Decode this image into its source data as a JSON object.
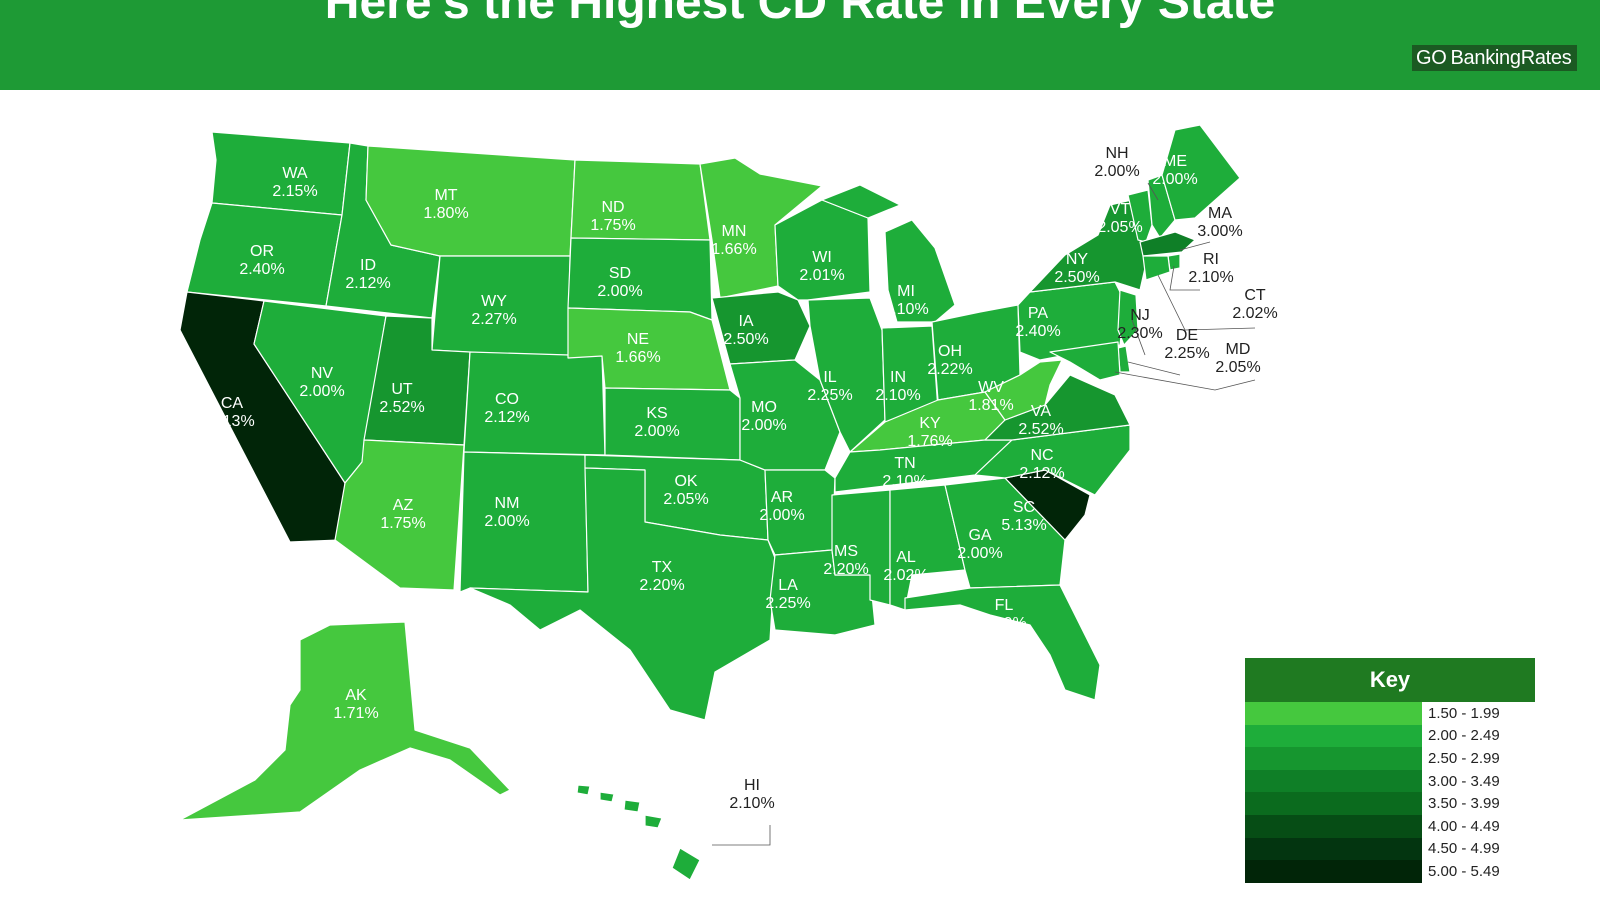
{
  "header": {
    "title": "Here's the Highest CD Rate in Every State",
    "brand_go": "GO",
    "brand_name": "BankingRates"
  },
  "legend": {
    "title": "Key",
    "items": [
      {
        "range": "1.50 - 1.99",
        "color": "#45c83e"
      },
      {
        "range": "2.00 - 2.49",
        "color": "#1ead3a"
      },
      {
        "range": "2.50 - 2.99",
        "color": "#16962f"
      },
      {
        "range": "3.00 - 3.49",
        "color": "#0f7f27"
      },
      {
        "range": "3.50 - 3.99",
        "color": "#0b6b1e"
      },
      {
        "range": "4.00 - 4.49",
        "color": "#064d15"
      },
      {
        "range": "4.50 - 4.99",
        "color": "#033510"
      },
      {
        "range": "5.00 - 5.49",
        "color": "#012508"
      }
    ]
  },
  "states": {
    "WA": {
      "name": "WA",
      "rate": "2.15%"
    },
    "OR": {
      "name": "OR",
      "rate": "2.40%"
    },
    "CA": {
      "name": "CA",
      "rate": "5.13%"
    },
    "ID": {
      "name": "ID",
      "rate": "2.12%"
    },
    "NV": {
      "name": "NV",
      "rate": "2.00%"
    },
    "MT": {
      "name": "MT",
      "rate": "1.80%"
    },
    "WY": {
      "name": "WY",
      "rate": "2.27%"
    },
    "UT": {
      "name": "UT",
      "rate": "2.52%"
    },
    "AZ": {
      "name": "AZ",
      "rate": "1.75%"
    },
    "CO": {
      "name": "CO",
      "rate": "2.12%"
    },
    "NM": {
      "name": "NM",
      "rate": "2.00%"
    },
    "ND": {
      "name": "ND",
      "rate": "1.75%"
    },
    "SD": {
      "name": "SD",
      "rate": "2.00%"
    },
    "NE": {
      "name": "NE",
      "rate": "1.66%"
    },
    "KS": {
      "name": "KS",
      "rate": "2.00%"
    },
    "OK": {
      "name": "OK",
      "rate": "2.05%"
    },
    "TX": {
      "name": "TX",
      "rate": "2.20%"
    },
    "MN": {
      "name": "MN",
      "rate": "1.66%"
    },
    "IA": {
      "name": "IA",
      "rate": "2.50%"
    },
    "MO": {
      "name": "MO",
      "rate": "2.00%"
    },
    "AR": {
      "name": "AR",
      "rate": "2.00%"
    },
    "LA": {
      "name": "LA",
      "rate": "2.25%"
    },
    "WI": {
      "name": "WI",
      "rate": "2.01%"
    },
    "IL": {
      "name": "IL",
      "rate": "2.25%"
    },
    "MI": {
      "name": "MI",
      "rate": "2.10%"
    },
    "IN": {
      "name": "IN",
      "rate": "2.10%"
    },
    "OH": {
      "name": "OH",
      "rate": "2.22%"
    },
    "KY": {
      "name": "KY",
      "rate": "1.76%"
    },
    "TN": {
      "name": "TN",
      "rate": "2.10%"
    },
    "MS": {
      "name": "MS",
      "rate": "2.20%"
    },
    "AL": {
      "name": "AL",
      "rate": "2.02%"
    },
    "GA": {
      "name": "GA",
      "rate": "2.00%"
    },
    "FL": {
      "name": "FL",
      "rate": "2.20%"
    },
    "SC": {
      "name": "SC",
      "rate": "5.13%"
    },
    "NC": {
      "name": "NC",
      "rate": "2.12%"
    },
    "VA": {
      "name": "VA",
      "rate": "2.52%"
    },
    "WV": {
      "name": "WV",
      "rate": "1.81%"
    },
    "PA": {
      "name": "PA",
      "rate": "2.40%"
    },
    "NY": {
      "name": "NY",
      "rate": "2.50%"
    },
    "VT": {
      "name": "VT",
      "rate": "2.05%"
    },
    "NH": {
      "name": "NH",
      "rate": "2.00%"
    },
    "ME": {
      "name": "ME",
      "rate": "2.00%"
    },
    "MA": {
      "name": "MA",
      "rate": "3.00%"
    },
    "RI": {
      "name": "RI",
      "rate": "2.10%"
    },
    "CT": {
      "name": "CT",
      "rate": "2.02%"
    },
    "NJ": {
      "name": "NJ",
      "rate": "2.30%"
    },
    "DE": {
      "name": "DE",
      "rate": "2.25%"
    },
    "MD": {
      "name": "MD",
      "rate": "2.05%"
    },
    "AK": {
      "name": "AK",
      "rate": "1.71%"
    },
    "HI": {
      "name": "HI",
      "rate": "2.10%"
    }
  }
}
